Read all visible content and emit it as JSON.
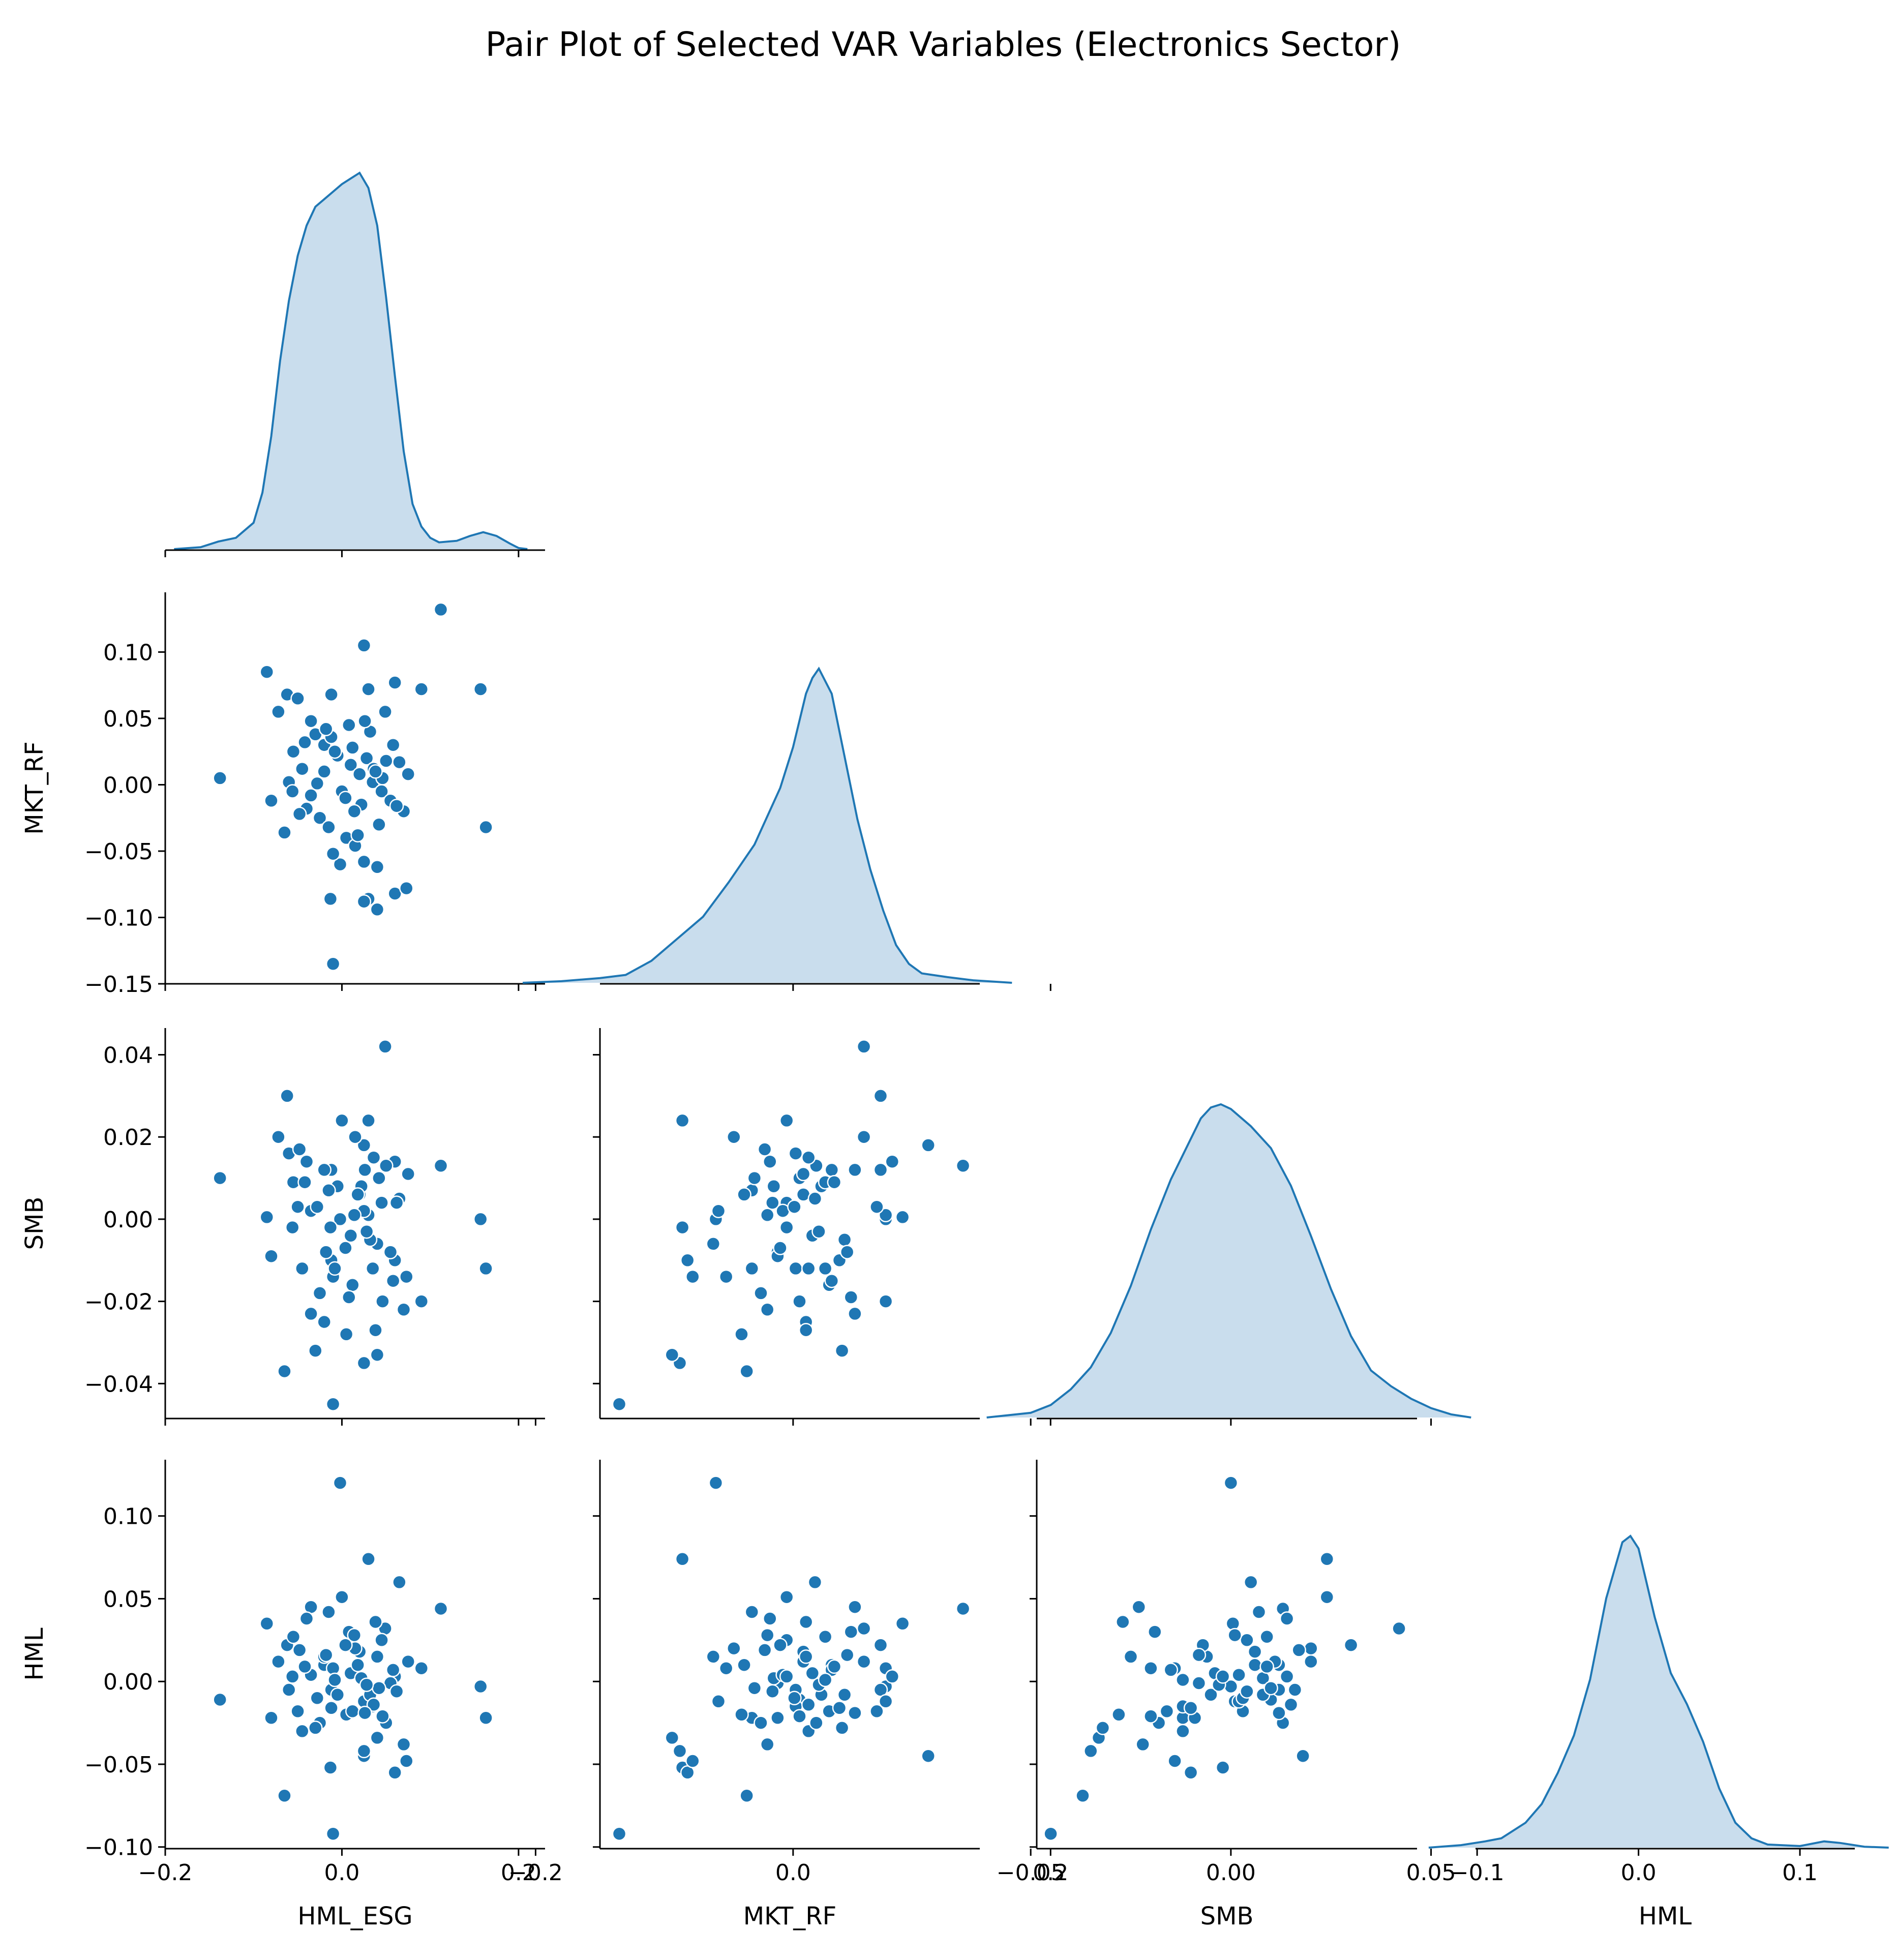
{
  "chart_data": {
    "type": "pairplot",
    "title": "Pair Plot of Selected VAR Variables (Electronics Sector)",
    "corner": true,
    "diag_kind": "kde",
    "color": "#1f77b4",
    "kde_fill_color": "#c6dbec",
    "variables": [
      {
        "name": "HML_ESG",
        "range": [
          -0.2,
          0.23
        ],
        "ticks": [
          -0.2,
          0.0,
          0.2
        ],
        "tick_labels": [
          "−0.2",
          "0.0",
          "0.2"
        ]
      },
      {
        "name": "MKT_RF",
        "range": [
          -0.15,
          0.145
        ],
        "ticks": [
          -0.2,
          0.0,
          0.2
        ],
        "tick_labels": [
          "−0.2",
          "0.0",
          "0.2"
        ],
        "ytick_values": [
          -0.15,
          -0.1,
          -0.05,
          0.0,
          0.05,
          0.1
        ],
        "ytick_labels": [
          "−0.15",
          "−0.10",
          "−0.05",
          "0.00",
          "0.05",
          "0.10"
        ]
      },
      {
        "name": "SMB",
        "range": [
          -0.0485,
          0.0465
        ],
        "ticks": [
          -0.05,
          0.0,
          0.05
        ],
        "tick_labels": [
          "−0.05",
          "0.00",
          "0.05"
        ],
        "ytick_values": [
          -0.04,
          -0.02,
          0.0,
          0.02,
          0.04
        ],
        "ytick_labels": [
          "−0.04",
          "−0.02",
          "0.00",
          "0.02",
          "0.04"
        ]
      },
      {
        "name": "HML",
        "range": [
          -0.101,
          0.134
        ],
        "ticks": [
          -0.1,
          0.0,
          0.1
        ],
        "tick_labels": [
          "−0.1",
          "0.0",
          "0.1"
        ],
        "ytick_values": [
          -0.1,
          -0.05,
          0.0,
          0.05,
          0.1
        ],
        "ytick_labels": [
          "−0.10",
          "−0.05",
          "0.00",
          "0.05",
          "0.10"
        ]
      }
    ],
    "diag_kde": {
      "HML_ESG": [
        [
          -0.19,
          0.0
        ],
        [
          -0.16,
          0.005
        ],
        [
          -0.14,
          0.02
        ],
        [
          -0.12,
          0.03
        ],
        [
          -0.1,
          0.07
        ],
        [
          -0.09,
          0.15
        ],
        [
          -0.08,
          0.3
        ],
        [
          -0.07,
          0.5
        ],
        [
          -0.06,
          0.66
        ],
        [
          -0.05,
          0.78
        ],
        [
          -0.04,
          0.86
        ],
        [
          -0.03,
          0.91
        ],
        [
          -0.02,
          0.93
        ],
        [
          -0.01,
          0.95
        ],
        [
          0.0,
          0.97
        ],
        [
          0.01,
          0.985
        ],
        [
          0.02,
          1.0
        ],
        [
          0.03,
          0.96
        ],
        [
          0.04,
          0.86
        ],
        [
          0.05,
          0.67
        ],
        [
          0.06,
          0.46
        ],
        [
          0.07,
          0.26
        ],
        [
          0.08,
          0.12
        ],
        [
          0.09,
          0.06
        ],
        [
          0.1,
          0.03
        ],
        [
          0.11,
          0.018
        ],
        [
          0.13,
          0.022
        ],
        [
          0.145,
          0.035
        ],
        [
          0.16,
          0.045
        ],
        [
          0.175,
          0.035
        ],
        [
          0.19,
          0.015
        ],
        [
          0.2,
          0.003
        ],
        [
          0.21,
          0.0
        ]
      ],
      "MKT_RF": [
        [
          -0.21,
          0.0
        ],
        [
          -0.18,
          0.005
        ],
        [
          -0.15,
          0.015
        ],
        [
          -0.13,
          0.025
        ],
        [
          -0.11,
          0.07
        ],
        [
          -0.09,
          0.14
        ],
        [
          -0.07,
          0.21
        ],
        [
          -0.05,
          0.32
        ],
        [
          -0.03,
          0.44
        ],
        [
          -0.01,
          0.62
        ],
        [
          0.0,
          0.75
        ],
        [
          0.01,
          0.92
        ],
        [
          0.015,
          0.97
        ],
        [
          0.02,
          1.0
        ],
        [
          0.03,
          0.92
        ],
        [
          0.04,
          0.72
        ],
        [
          0.05,
          0.52
        ],
        [
          0.06,
          0.36
        ],
        [
          0.07,
          0.23
        ],
        [
          0.08,
          0.12
        ],
        [
          0.09,
          0.06
        ],
        [
          0.1,
          0.03
        ],
        [
          0.12,
          0.018
        ],
        [
          0.14,
          0.008
        ],
        [
          0.17,
          0.0
        ]
      ],
      "SMB": [
        [
          -0.061,
          0.0
        ],
        [
          -0.05,
          0.015
        ],
        [
          -0.045,
          0.04
        ],
        [
          -0.04,
          0.09
        ],
        [
          -0.035,
          0.16
        ],
        [
          -0.03,
          0.27
        ],
        [
          -0.025,
          0.42
        ],
        [
          -0.02,
          0.6
        ],
        [
          -0.015,
          0.76
        ],
        [
          -0.01,
          0.89
        ],
        [
          -0.0075,
          0.955
        ],
        [
          -0.005,
          0.99
        ],
        [
          -0.0025,
          1.0
        ],
        [
          0.0,
          0.985
        ],
        [
          0.005,
          0.93
        ],
        [
          0.01,
          0.86
        ],
        [
          0.015,
          0.74
        ],
        [
          0.02,
          0.58
        ],
        [
          0.025,
          0.41
        ],
        [
          0.03,
          0.26
        ],
        [
          0.035,
          0.15
        ],
        [
          0.04,
          0.1
        ],
        [
          0.045,
          0.06
        ],
        [
          0.05,
          0.03
        ],
        [
          0.055,
          0.01
        ],
        [
          0.06,
          0.0
        ]
      ],
      "HML": [
        [
          -0.13,
          0.0
        ],
        [
          -0.11,
          0.008
        ],
        [
          -0.095,
          0.02
        ],
        [
          -0.085,
          0.03
        ],
        [
          -0.07,
          0.08
        ],
        [
          -0.06,
          0.14
        ],
        [
          -0.05,
          0.24
        ],
        [
          -0.04,
          0.36
        ],
        [
          -0.03,
          0.54
        ],
        [
          -0.02,
          0.8
        ],
        [
          -0.01,
          0.98
        ],
        [
          -0.005,
          1.0
        ],
        [
          0.0,
          0.96
        ],
        [
          0.01,
          0.74
        ],
        [
          0.02,
          0.56
        ],
        [
          0.03,
          0.46
        ],
        [
          0.04,
          0.34
        ],
        [
          0.05,
          0.19
        ],
        [
          0.06,
          0.08
        ],
        [
          0.07,
          0.03
        ],
        [
          0.08,
          0.01
        ],
        [
          0.1,
          0.005
        ],
        [
          0.115,
          0.02
        ],
        [
          0.125,
          0.015
        ],
        [
          0.14,
          0.003
        ],
        [
          0.155,
          0.0
        ]
      ]
    },
    "observations": {
      "columns": [
        "HML_ESG",
        "MKT_RF",
        "SMB",
        "HML"
      ],
      "rows": [
        [
          0.112,
          0.132,
          0.013,
          0.044
        ],
        [
          0.157,
          0.072,
          0.0,
          -0.003
        ],
        [
          0.163,
          -0.032,
          -0.012,
          -0.022
        ],
        [
          -0.138,
          0.005,
          0.01,
          -0.011
        ],
        [
          0.025,
          0.105,
          0.018,
          -0.045
        ],
        [
          -0.085,
          0.085,
          0.0005,
          0.035
        ],
        [
          -0.062,
          0.068,
          0.03,
          0.022
        ],
        [
          -0.012,
          0.068,
          0.012,
          -0.005
        ],
        [
          0.03,
          0.072,
          0.001,
          -0.012
        ],
        [
          0.09,
          0.072,
          -0.02,
          0.008
        ],
        [
          0.06,
          0.077,
          0.014,
          0.003
        ],
        [
          0.049,
          0.055,
          0.042,
          0.032
        ],
        [
          -0.01,
          -0.135,
          -0.045,
          -0.092
        ],
        [
          -0.002,
          -0.06,
          0.0,
          0.12
        ],
        [
          0.03,
          -0.086,
          0.024,
          0.074
        ],
        [
          0.025,
          -0.088,
          -0.035,
          -0.042
        ],
        [
          -0.013,
          -0.086,
          -0.002,
          -0.052
        ],
        [
          0.04,
          -0.094,
          -0.033,
          -0.034
        ],
        [
          0.06,
          -0.082,
          -0.01,
          -0.055
        ],
        [
          0.073,
          -0.078,
          -0.014,
          -0.048
        ],
        [
          -0.065,
          -0.036,
          -0.037,
          -0.069
        ],
        [
          -0.072,
          0.055,
          0.02,
          0.012
        ],
        [
          -0.05,
          0.065,
          0.003,
          -0.018
        ],
        [
          -0.035,
          0.048,
          -0.023,
          0.045
        ],
        [
          -0.02,
          0.03,
          0.012,
          0.01
        ],
        [
          -0.005,
          0.022,
          0.008,
          -0.008
        ],
        [
          0.01,
          0.015,
          -0.004,
          0.005
        ],
        [
          0.02,
          0.008,
          0.006,
          0.018
        ],
        [
          0.035,
          0.002,
          -0.012,
          -0.015
        ],
        [
          0.045,
          -0.005,
          0.004,
          0.025
        ],
        [
          0.055,
          -0.012,
          -0.008,
          -0.001
        ],
        [
          -0.04,
          -0.018,
          0.014,
          0.038
        ],
        [
          -0.025,
          -0.025,
          -0.018,
          -0.025
        ],
        [
          -0.015,
          -0.032,
          0.007,
          0.042
        ],
        [
          0.005,
          -0.04,
          -0.028,
          -0.02
        ],
        [
          0.015,
          -0.046,
          0.02,
          0.02
        ],
        [
          -0.01,
          -0.052,
          -0.014,
          0.008
        ],
        [
          0.025,
          -0.058,
          0.002,
          -0.012
        ],
        [
          0.04,
          -0.062,
          -0.006,
          0.015
        ],
        [
          -0.03,
          0.038,
          -0.032,
          -0.028
        ],
        [
          -0.055,
          0.025,
          0.009,
          0.027
        ],
        [
          -0.045,
          0.012,
          -0.012,
          -0.03
        ],
        [
          -0.06,
          0.002,
          0.016,
          -0.005
        ],
        [
          0.065,
          0.017,
          0.005,
          0.06
        ],
        [
          0.07,
          -0.02,
          -0.022,
          -0.038
        ],
        [
          0.075,
          0.008,
          0.011,
          0.012
        ],
        [
          -0.08,
          -0.012,
          -0.009,
          -0.022
        ],
        [
          0.0,
          -0.005,
          0.024,
          0.051
        ],
        [
          0.012,
          0.028,
          -0.016,
          -0.018
        ],
        [
          0.022,
          -0.015,
          0.008,
          0.002
        ],
        [
          0.032,
          0.04,
          -0.005,
          -0.008
        ],
        [
          -0.02,
          0.01,
          -0.025,
          0.015
        ],
        [
          0.05,
          0.018,
          0.013,
          -0.025
        ],
        [
          -0.035,
          -0.008,
          0.002,
          0.004
        ],
        [
          0.008,
          0.045,
          -0.019,
          0.03
        ],
        [
          0.042,
          -0.03,
          0.01,
          -0.004
        ],
        [
          -0.012,
          0.036,
          -0.01,
          -0.016
        ],
        [
          0.018,
          -0.038,
          0.006,
          0.01
        ],
        [
          0.028,
          0.02,
          -0.003,
          -0.002
        ],
        [
          -0.048,
          -0.022,
          0.017,
          0.019
        ],
        [
          0.058,
          0.03,
          -0.015,
          0.007
        ],
        [
          -0.028,
          0.001,
          0.003,
          -0.01
        ],
        [
          0.004,
          -0.01,
          -0.007,
          0.022
        ],
        [
          0.036,
          0.012,
          0.015,
          -0.014
        ],
        [
          -0.008,
          0.025,
          -0.012,
          0.001
        ],
        [
          0.014,
          -0.02,
          0.001,
          0.028
        ],
        [
          0.046,
          0.005,
          -0.02,
          -0.021
        ],
        [
          -0.042,
          0.032,
          0.009,
          0.009
        ],
        [
          0.062,
          -0.016,
          0.004,
          -0.006
        ],
        [
          -0.018,
          0.042,
          -0.008,
          0.016
        ],
        [
          0.026,
          0.048,
          0.012,
          -0.019
        ],
        [
          -0.056,
          -0.005,
          -0.002,
          0.003
        ],
        [
          0.038,
          0.01,
          -0.027,
          0.036
        ]
      ]
    }
  }
}
